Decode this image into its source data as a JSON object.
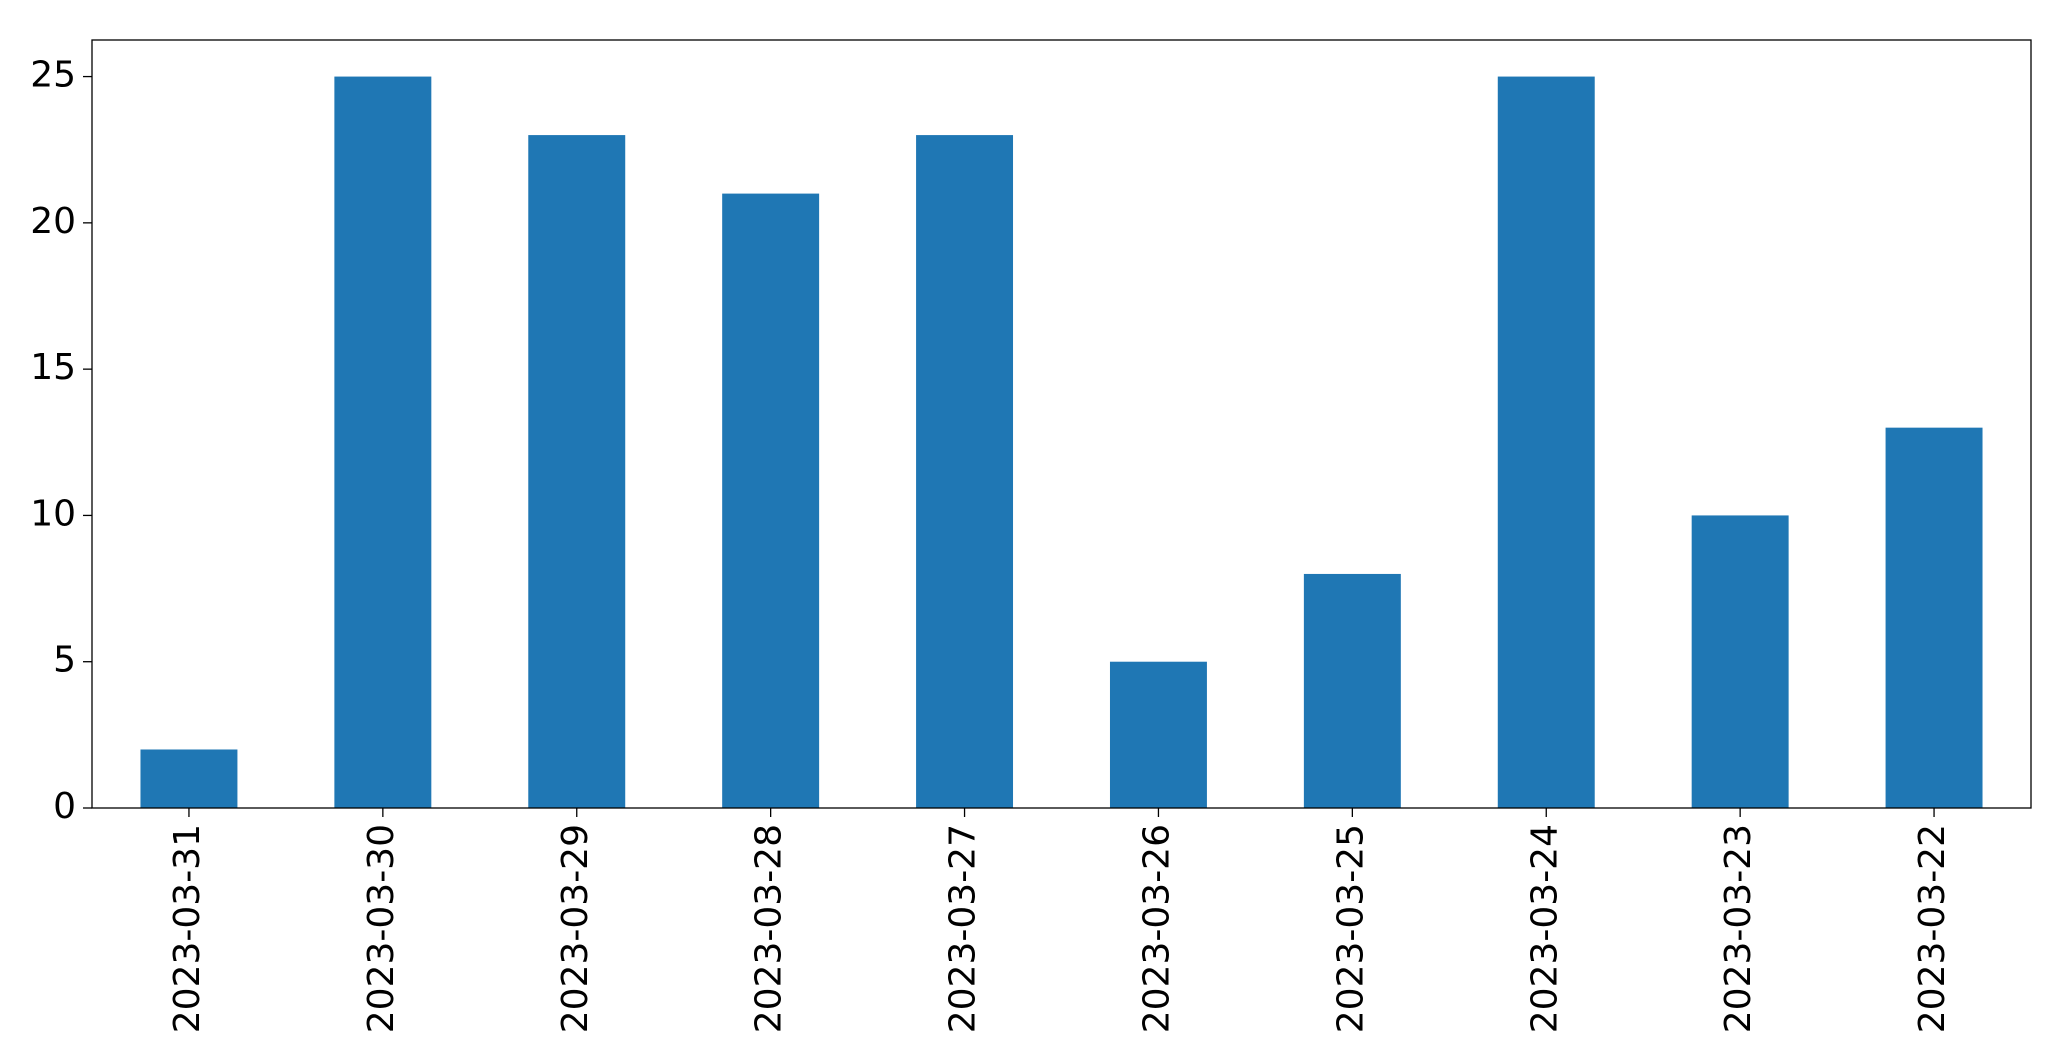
{
  "chart_data": {
    "type": "bar",
    "categories": [
      "2023-03-31",
      "2023-03-30",
      "2023-03-29",
      "2023-03-28",
      "2023-03-27",
      "2023-03-26",
      "2023-03-25",
      "2023-03-24",
      "2023-03-23",
      "2023-03-22"
    ],
    "values": [
      2,
      25,
      23,
      21,
      23,
      5,
      8,
      25,
      10,
      13
    ],
    "color": "#1f77b4",
    "ylim": [
      0,
      26.25
    ],
    "yticks": [
      0,
      5,
      10,
      15,
      20,
      25
    ],
    "grid": false
  }
}
